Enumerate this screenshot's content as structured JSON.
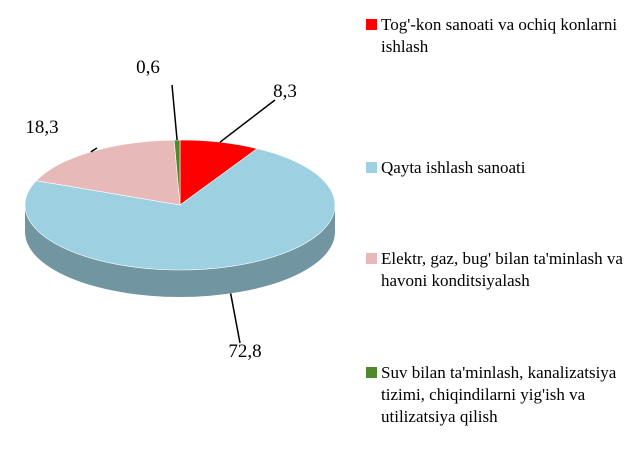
{
  "chart_data": {
    "type": "pie",
    "categories": [
      "Tog'-kon sanoati va ochiq konlarni ishlash",
      "Qayta ishlash sanoati",
      "Elektr, gaz, bug' bilan ta'minlash va havoni konditsiyalash",
      "Suv bilan ta'minlash, kanalizatsiya tizimi, chiqindilarni yig'ish va utilizatsiya qilish"
    ],
    "values": [
      8.3,
      72.8,
      18.3,
      0.6
    ],
    "value_labels": [
      "8,3",
      "72,8",
      "18,3",
      "0,6"
    ],
    "colors": [
      "#ff0000",
      "#9dd0e0",
      "#e8b9b9",
      "#4e8a2c"
    ],
    "legend": "right"
  }
}
